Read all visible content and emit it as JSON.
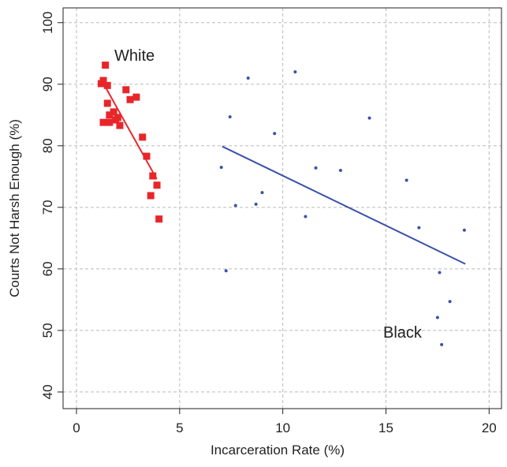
{
  "chart_data": {
    "type": "scatter",
    "x_label": "Incarceration Rate (%)",
    "y_label": "Courts Not Harsh Enough (%)",
    "xlim": [
      -0.65,
      20.6
    ],
    "ylim": [
      37.3,
      102.4
    ],
    "xticks": [
      0,
      5,
      10,
      15,
      20
    ],
    "yticks": [
      40,
      50,
      60,
      70,
      80,
      90,
      100
    ],
    "grid": true,
    "series": [
      {
        "name": "White",
        "color": "#e8262a",
        "marker": "square",
        "x": [
          1.4,
          1.3,
          1.2,
          1.5,
          2.4,
          2.9,
          2.6,
          1.5,
          1.8,
          1.6,
          2.0,
          1.9,
          1.3,
          1.6,
          2.1,
          3.2,
          3.4,
          3.7,
          3.6,
          3.9,
          4.0
        ],
        "values": [
          93.1,
          90.6,
          90.1,
          89.8,
          89.1,
          87.9,
          87.5,
          86.9,
          85.5,
          85.0,
          84.6,
          84.2,
          83.8,
          83.8,
          83.3,
          81.4,
          78.3,
          75.1,
          71.9,
          73.6,
          68.1
        ],
        "fit": {
          "x": [
            1.26,
            3.89
          ],
          "values": [
            90.4,
            74.6
          ]
        }
      },
      {
        "name": "Black",
        "color": "#3a52a8",
        "marker": "dot",
        "x": [
          7.02,
          7.44,
          8.32,
          7.25,
          7.71,
          8.7,
          9.0,
          9.6,
          10.6,
          11.1,
          11.6,
          12.8,
          14.2,
          16.0,
          16.6,
          17.6,
          17.5,
          18.1,
          17.7,
          18.8
        ],
        "values": [
          76.5,
          84.7,
          91.0,
          59.7,
          70.3,
          70.5,
          72.4,
          82.0,
          92.0,
          68.5,
          76.4,
          76.0,
          84.5,
          74.4,
          66.7,
          59.4,
          52.1,
          54.7,
          47.7,
          66.3
        ],
        "fit": {
          "x": [
            7.06,
            18.85
          ],
          "values": [
            79.9,
            60.8
          ]
        }
      }
    ]
  }
}
